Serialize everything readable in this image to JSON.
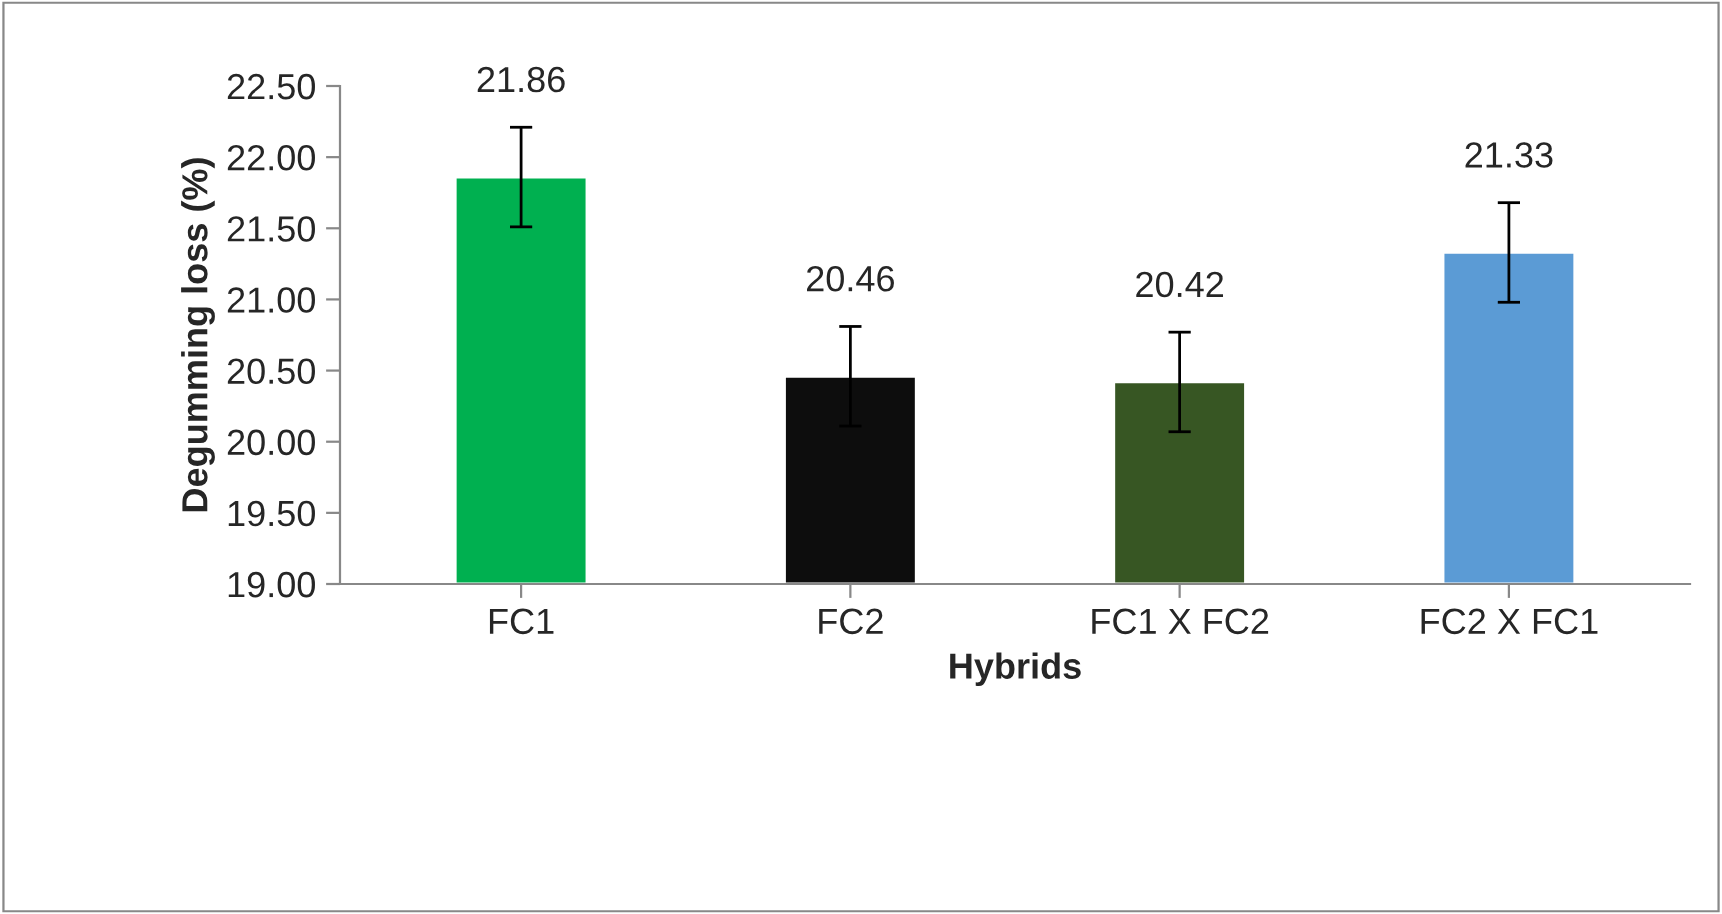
{
  "chart_data": {
    "type": "bar",
    "xlabel": "Hybrids",
    "ylabel": "Degumming loss (%)",
    "categories": [
      "FC1",
      "FC2",
      "FC1 X FC2",
      "FC2 X FC1"
    ],
    "values": [
      21.86,
      20.46,
      20.42,
      21.33
    ],
    "colors": [
      "#00b050",
      "#0d0d0d",
      "#375623",
      "#5b9bd5"
    ],
    "errors": [
      0.35,
      0.35,
      0.35,
      0.35
    ],
    "data_labels": true,
    "ylim": [
      19.0,
      22.5
    ],
    "yticks": [
      {
        "value": 19.0,
        "label": "19.00"
      },
      {
        "value": 19.5,
        "label": "19.50"
      },
      {
        "value": 20.0,
        "label": "20.00"
      },
      {
        "value": 20.5,
        "label": "20.50"
      },
      {
        "value": 21.0,
        "label": "21.00"
      },
      {
        "value": 21.5,
        "label": "21.50"
      },
      {
        "value": 22.0,
        "label": "22.00"
      },
      {
        "value": 22.5,
        "label": "22.50"
      }
    ],
    "grid": false,
    "legend": false
  }
}
